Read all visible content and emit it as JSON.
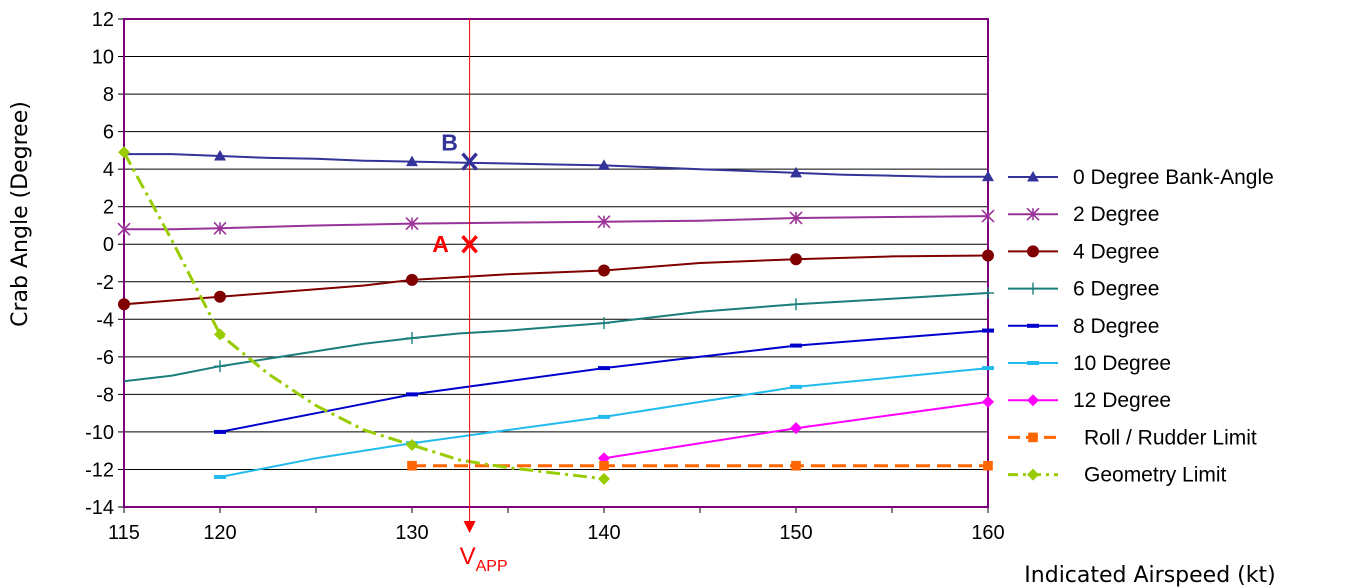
{
  "chart_data": {
    "type": "line",
    "xlabel": "Indicated Airspeed (kt)",
    "ylabel": "Crab Angle (Degree)",
    "xlim": [
      115,
      160
    ],
    "ylim": [
      -14,
      12
    ],
    "x_ticks": [
      115,
      120,
      130,
      140,
      150,
      160
    ],
    "y_ticks": [
      12,
      10,
      8,
      6,
      4,
      2,
      0,
      -2,
      -4,
      -6,
      -8,
      -10,
      -12,
      -14
    ],
    "grid": "horizontal",
    "legend_position": "right",
    "series": [
      {
        "name": "0  Degree Bank-Angle",
        "color": "#333399",
        "marker": "triangle",
        "dash": "solid",
        "points": [
          [
            115,
            4.8
          ],
          [
            117.5,
            4.8
          ],
          [
            120,
            4.7
          ],
          [
            122.5,
            4.6
          ],
          [
            125,
            4.55
          ],
          [
            127.5,
            4.45
          ],
          [
            130,
            4.4
          ],
          [
            132.5,
            4.35
          ],
          [
            135,
            4.3
          ],
          [
            137.5,
            4.25
          ],
          [
            140,
            4.2
          ],
          [
            142.5,
            4.1
          ],
          [
            145,
            4.0
          ],
          [
            147.5,
            3.9
          ],
          [
            150,
            3.8
          ],
          [
            152.5,
            3.7
          ],
          [
            155,
            3.65
          ],
          [
            157.5,
            3.6
          ],
          [
            160,
            3.6
          ]
        ],
        "marked": [
          [
            120,
            4.7
          ],
          [
            130,
            4.4
          ],
          [
            140,
            4.2
          ],
          [
            150,
            3.8
          ],
          [
            160,
            3.6
          ]
        ]
      },
      {
        "name": "2  Degree",
        "color": "#993399",
        "marker": "asterisk",
        "dash": "solid",
        "points": [
          [
            115,
            0.8
          ],
          [
            117.5,
            0.8
          ],
          [
            120,
            0.85
          ],
          [
            125,
            1.0
          ],
          [
            130,
            1.1
          ],
          [
            135,
            1.15
          ],
          [
            140,
            1.2
          ],
          [
            145,
            1.25
          ],
          [
            150,
            1.4
          ],
          [
            155,
            1.45
          ],
          [
            160,
            1.5
          ]
        ],
        "marked": [
          [
            115,
            0.8
          ],
          [
            120,
            0.85
          ],
          [
            130,
            1.1
          ],
          [
            140,
            1.2
          ],
          [
            150,
            1.4
          ],
          [
            160,
            1.5
          ]
        ]
      },
      {
        "name": "4  Degree",
        "color": "#800000",
        "marker": "circle",
        "dash": "solid",
        "points": [
          [
            115,
            -3.2
          ],
          [
            117.5,
            -3.0
          ],
          [
            120,
            -2.8
          ],
          [
            122.5,
            -2.6
          ],
          [
            125,
            -2.4
          ],
          [
            127.5,
            -2.2
          ],
          [
            130,
            -1.9
          ],
          [
            132.5,
            -1.75
          ],
          [
            135,
            -1.6
          ],
          [
            137.5,
            -1.5
          ],
          [
            140,
            -1.4
          ],
          [
            142.5,
            -1.2
          ],
          [
            145,
            -1.0
          ],
          [
            147.5,
            -0.9
          ],
          [
            150,
            -0.8
          ],
          [
            155,
            -0.65
          ],
          [
            160,
            -0.6
          ]
        ],
        "marked": [
          [
            115,
            -3.2
          ],
          [
            120,
            -2.8
          ],
          [
            130,
            -1.9
          ],
          [
            140,
            -1.4
          ],
          [
            150,
            -0.8
          ],
          [
            160,
            -0.6
          ]
        ]
      },
      {
        "name": "6  Degree",
        "color": "#1A7F7A",
        "marker": "plus",
        "dash": "solid",
        "points": [
          [
            115,
            -7.3
          ],
          [
            117.5,
            -7.0
          ],
          [
            120,
            -6.5
          ],
          [
            122.5,
            -6.1
          ],
          [
            125,
            -5.7
          ],
          [
            127.5,
            -5.3
          ],
          [
            130,
            -5.0
          ],
          [
            132.5,
            -4.75
          ],
          [
            135,
            -4.6
          ],
          [
            137.5,
            -4.4
          ],
          [
            140,
            -4.2
          ],
          [
            142.5,
            -3.9
          ],
          [
            145,
            -3.6
          ],
          [
            147.5,
            -3.4
          ],
          [
            150,
            -3.2
          ],
          [
            155,
            -2.9
          ],
          [
            160,
            -2.6
          ]
        ],
        "marked": [
          [
            120,
            -6.5
          ],
          [
            130,
            -5.0
          ],
          [
            140,
            -4.2
          ],
          [
            150,
            -3.2
          ],
          [
            160,
            -2.6
          ]
        ]
      },
      {
        "name": "8  Degree",
        "color": "#0000CC",
        "marker": "dash",
        "dash": "solid",
        "points": [
          [
            120,
            -10.0
          ],
          [
            125,
            -9.0
          ],
          [
            130,
            -8.0
          ],
          [
            135,
            -7.3
          ],
          [
            140,
            -6.6
          ],
          [
            145,
            -6.0
          ],
          [
            150,
            -5.4
          ],
          [
            155,
            -5.0
          ],
          [
            160,
            -4.6
          ]
        ],
        "marked": [
          [
            120,
            -10.0
          ],
          [
            130,
            -8.0
          ],
          [
            140,
            -6.6
          ],
          [
            150,
            -5.4
          ],
          [
            160,
            -4.6
          ]
        ]
      },
      {
        "name": "10 Degree",
        "color": "#22BBEE",
        "marker": "dash",
        "dash": "solid",
        "points": [
          [
            120,
            -12.4
          ],
          [
            125,
            -11.4
          ],
          [
            130,
            -10.6
          ],
          [
            135,
            -9.9
          ],
          [
            140,
            -9.2
          ],
          [
            145,
            -8.4
          ],
          [
            150,
            -7.6
          ],
          [
            155,
            -7.1
          ],
          [
            160,
            -6.6
          ]
        ],
        "marked": [
          [
            120,
            -12.4
          ],
          [
            130,
            -10.6
          ],
          [
            140,
            -9.2
          ],
          [
            150,
            -7.6
          ],
          [
            160,
            -6.6
          ]
        ]
      },
      {
        "name": "12 Degree",
        "color": "#FF00FF",
        "marker": "diamond",
        "dash": "solid",
        "points": [
          [
            140,
            -11.4
          ],
          [
            145,
            -10.6
          ],
          [
            150,
            -9.8
          ],
          [
            155,
            -9.1
          ],
          [
            160,
            -8.4
          ]
        ],
        "marked": [
          [
            140,
            -11.4
          ],
          [
            150,
            -9.8
          ],
          [
            160,
            -8.4
          ]
        ]
      },
      {
        "name": "Roll / Rudder Limit",
        "color": "#FF6600",
        "marker": "square",
        "dash": "dashed",
        "points": [
          [
            130,
            -11.8
          ],
          [
            140,
            -11.8
          ],
          [
            150,
            -11.8
          ],
          [
            160,
            -11.8
          ]
        ],
        "marked": [
          [
            130,
            -11.8
          ],
          [
            140,
            -11.8
          ],
          [
            150,
            -11.8
          ],
          [
            160,
            -11.8
          ]
        ]
      },
      {
        "name": "Geometry Limit",
        "color": "#99CC00",
        "marker": "diamond",
        "dash": "dashdot",
        "points": [
          [
            115,
            4.9
          ],
          [
            117.5,
            0.2
          ],
          [
            120,
            -4.8
          ],
          [
            122.5,
            -6.9
          ],
          [
            125,
            -8.6
          ],
          [
            127.5,
            -9.9
          ],
          [
            130,
            -10.7
          ],
          [
            132.5,
            -11.5
          ],
          [
            135,
            -11.9
          ],
          [
            137.5,
            -12.2
          ],
          [
            140,
            -12.5
          ]
        ],
        "marked": [
          [
            115,
            4.9
          ],
          [
            120,
            -4.8
          ],
          [
            130,
            -10.7
          ],
          [
            140,
            -12.5
          ]
        ]
      }
    ],
    "annotations": {
      "vapp": {
        "x": 133,
        "label": "V",
        "label_sub": "APP",
        "color": "#FF0000"
      },
      "points": [
        {
          "letter": "B",
          "x": 133,
          "y": 4.4,
          "color": "#333399"
        },
        {
          "letter": "A",
          "x": 133,
          "y": 0,
          "color": "#FF0000"
        }
      ]
    }
  }
}
